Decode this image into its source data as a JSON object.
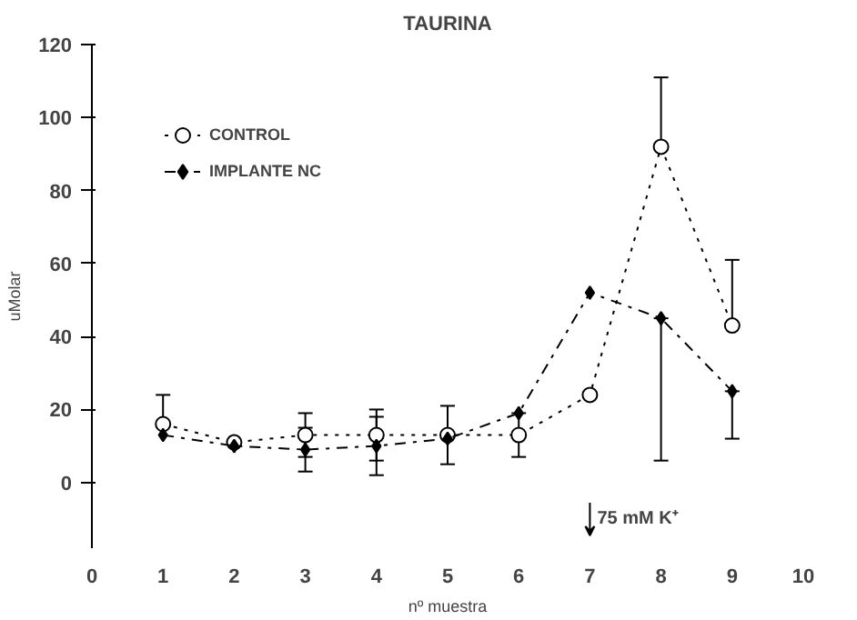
{
  "chart_data": {
    "type": "line",
    "title": "TAURINA",
    "xlabel": "nº muestra",
    "ylabel": "uMolar",
    "x": [
      1,
      2,
      3,
      4,
      5,
      6,
      7,
      8,
      9
    ],
    "series": [
      {
        "name": "CONTROL",
        "color": "#000000",
        "marker": "circle",
        "line_style": "dotted",
        "values": [
          16,
          11,
          13,
          13,
          13,
          13,
          24,
          92,
          43
        ],
        "errors": [
          [
            16,
            24
          ],
          null,
          6,
          7,
          8,
          6,
          null,
          [
            92,
            111
          ],
          [
            43,
            61
          ]
        ]
      },
      {
        "name": "IMPLANTE NC",
        "color": "#000000",
        "marker": "diamond",
        "line_style": "dashed",
        "values": [
          13,
          10,
          9,
          10,
          12,
          19,
          52,
          45,
          25
        ],
        "errors": [
          null,
          null,
          6,
          8,
          null,
          null,
          null,
          [
            6,
            45
          ],
          [
            12,
            25
          ]
        ]
      }
    ],
    "annotations": [
      "75 mM K⁺"
    ],
    "xlim": [
      0,
      10
    ],
    "xticks": [
      0,
      1,
      2,
      3,
      4,
      5,
      6,
      7,
      8,
      9,
      10
    ],
    "ylim": [
      -18,
      120
    ],
    "yticks": [
      0,
      20,
      40,
      60,
      80,
      100,
      120
    ],
    "legend": "top left",
    "grid": false
  }
}
